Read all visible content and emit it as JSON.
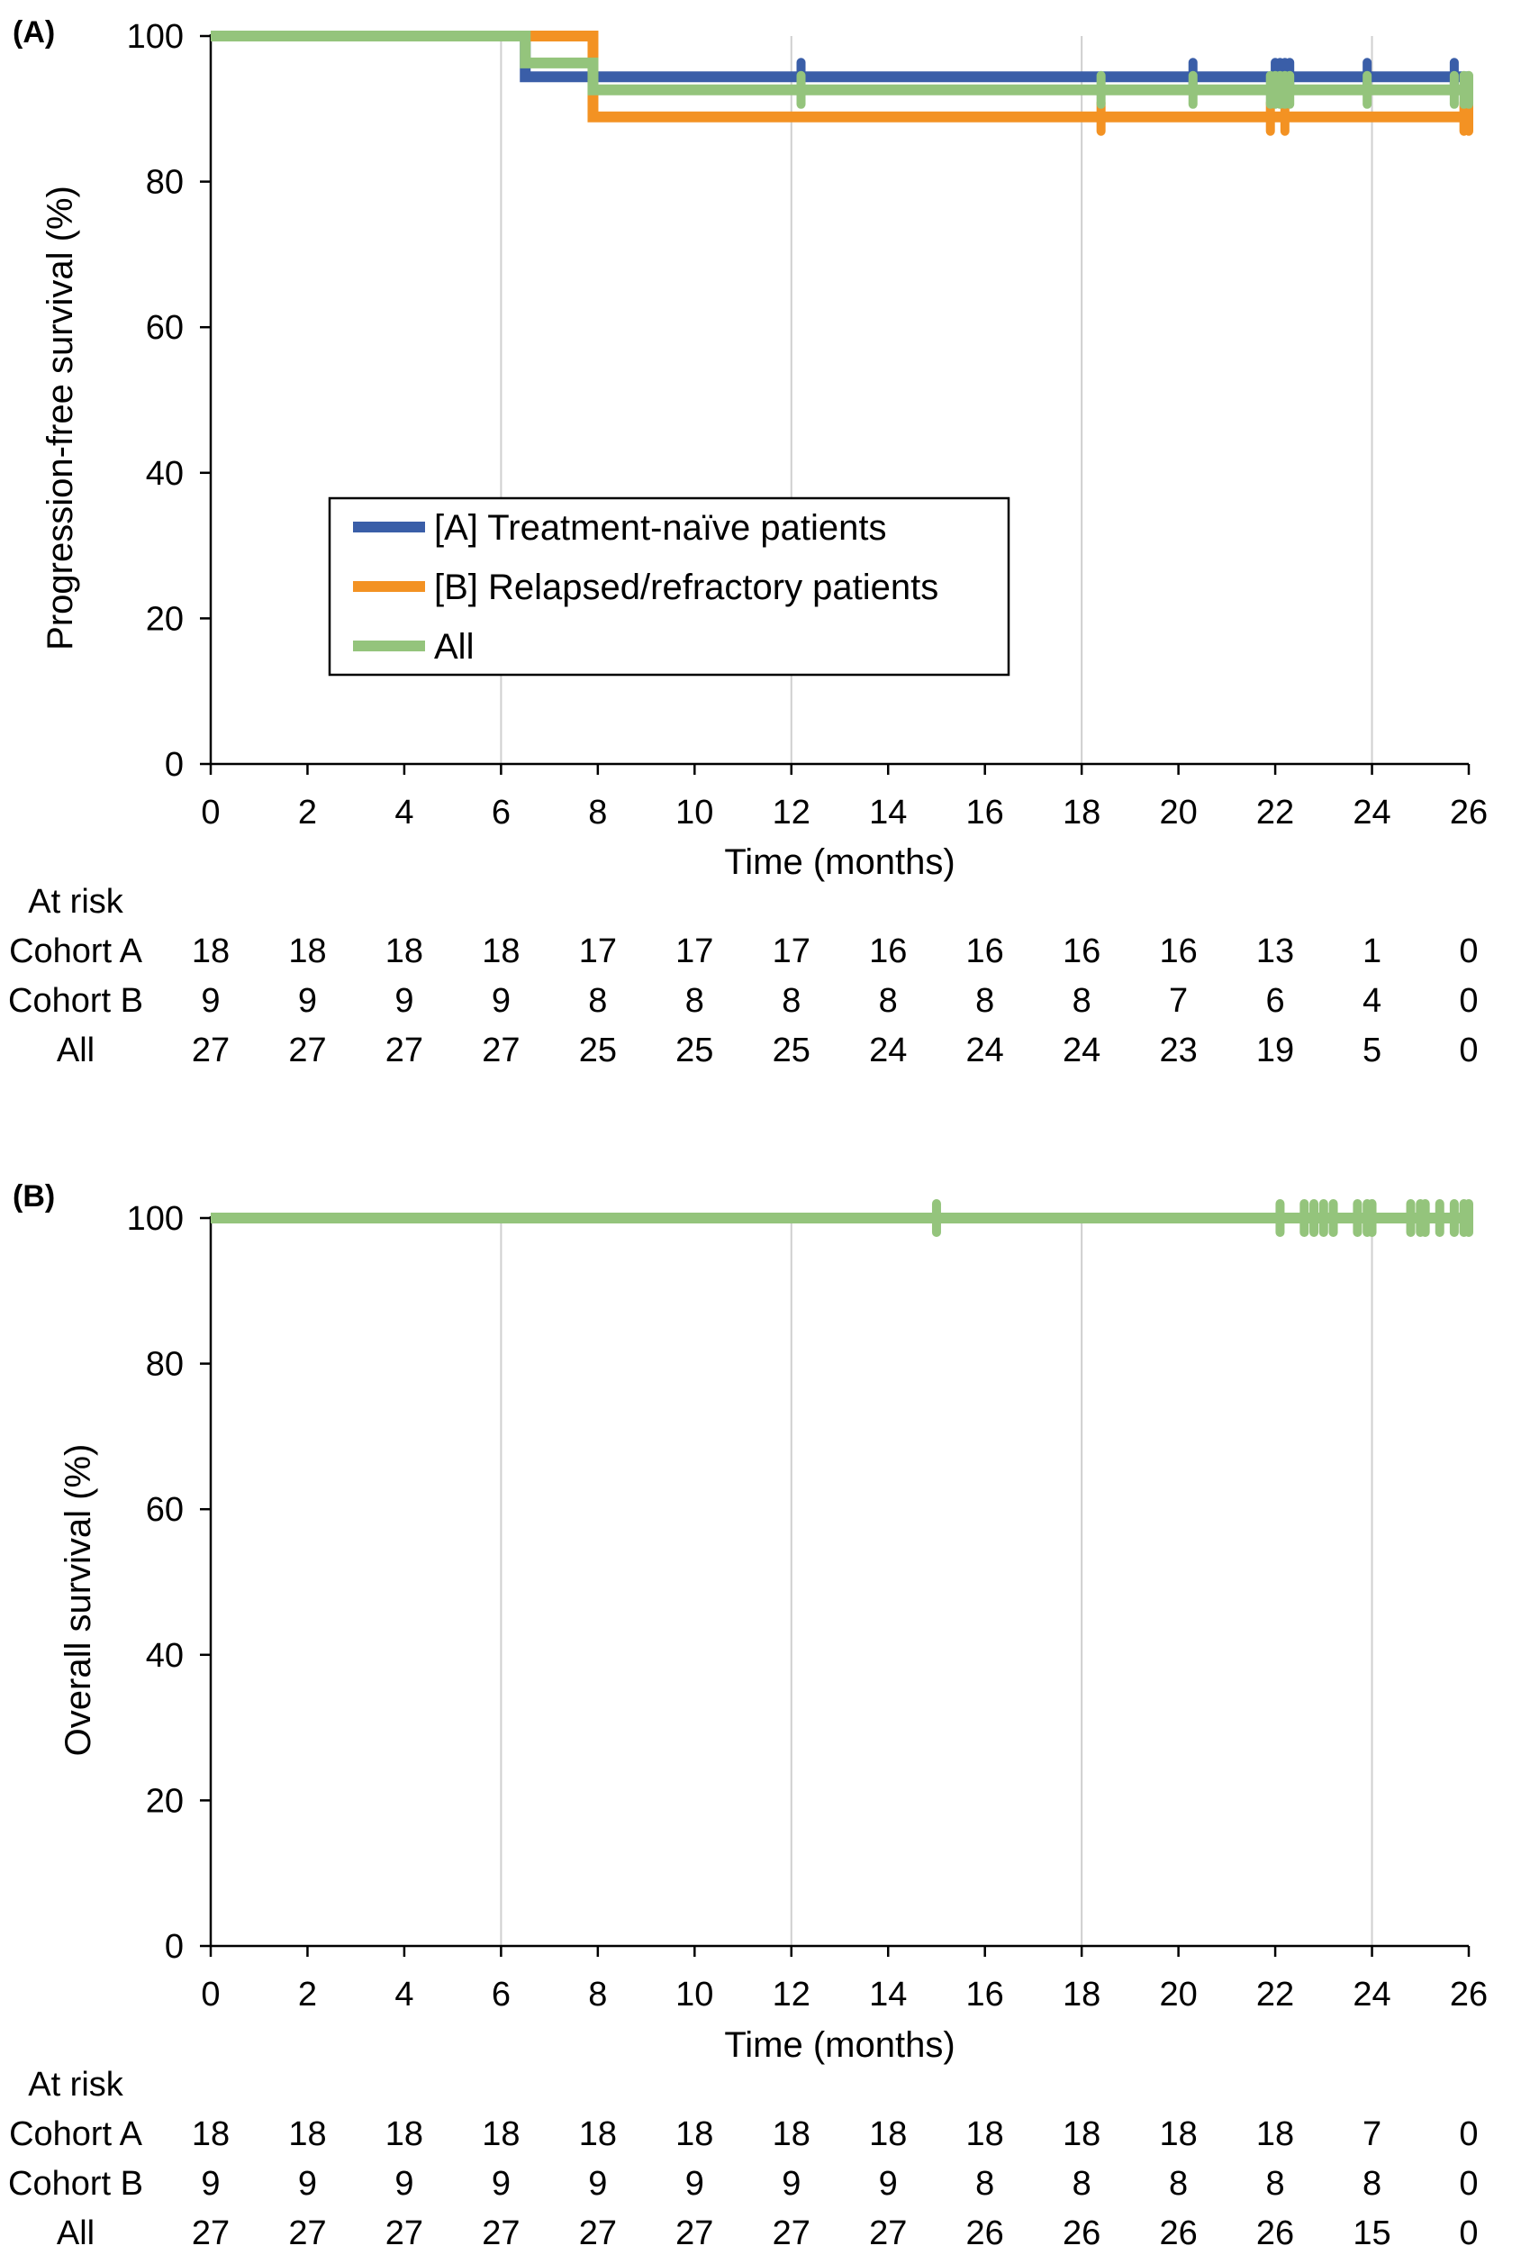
{
  "chart_data": [
    {
      "type": "line",
      "panel_label": "(A)",
      "xlabel": "Time (months)",
      "ylabel": "Progression-free survival (%)",
      "xlim": [
        0,
        26
      ],
      "ylim": [
        0,
        100
      ],
      "x_ticks": [
        0,
        2,
        4,
        6,
        8,
        10,
        12,
        14,
        16,
        18,
        20,
        22,
        24,
        26
      ],
      "y_ticks": [
        0,
        20,
        40,
        60,
        80,
        100
      ],
      "x_grid": [
        6,
        12,
        18,
        24
      ],
      "legend_position": "center-left",
      "series": [
        {
          "name": "[A] Treatment-naïve patients",
          "color": "#3a5ea8",
          "steps": [
            [
              0,
              100
            ],
            [
              6.5,
              94.4
            ],
            [
              26,
              94.4
            ]
          ],
          "censored": [
            [
              12.2,
              94.4
            ],
            [
              20.3,
              94.4
            ],
            [
              22.0,
              94.4
            ],
            [
              22.1,
              94.4
            ],
            [
              22.2,
              94.4
            ],
            [
              22.3,
              94.4
            ],
            [
              23.9,
              94.4
            ],
            [
              25.7,
              94.4
            ]
          ]
        },
        {
          "name": "[B] Relapsed/refractory patients",
          "color": "#f39223",
          "steps": [
            [
              0,
              100
            ],
            [
              7.9,
              88.9
            ],
            [
              26,
              88.9
            ]
          ],
          "censored": [
            [
              18.4,
              88.9
            ],
            [
              21.9,
              88.9
            ],
            [
              22.2,
              88.9
            ],
            [
              25.9,
              88.9
            ],
            [
              26.0,
              88.9
            ]
          ]
        },
        {
          "name": "All",
          "color": "#94c47c",
          "steps": [
            [
              0,
              100
            ],
            [
              6.5,
              96.3
            ],
            [
              7.9,
              92.6
            ],
            [
              26,
              92.6
            ]
          ],
          "censored": [
            [
              12.2,
              92.6
            ],
            [
              18.4,
              92.6
            ],
            [
              20.3,
              92.6
            ],
            [
              21.9,
              92.6
            ],
            [
              22.0,
              92.6
            ],
            [
              22.1,
              92.6
            ],
            [
              22.2,
              92.6
            ],
            [
              22.3,
              92.6
            ],
            [
              23.9,
              92.6
            ],
            [
              25.7,
              92.6
            ],
            [
              25.9,
              92.6
            ],
            [
              26.0,
              92.6
            ]
          ]
        }
      ],
      "at_risk": {
        "heading": "At risk",
        "times": [
          0,
          2,
          4,
          6,
          8,
          10,
          12,
          14,
          16,
          18,
          20,
          22,
          24,
          26
        ],
        "rows": [
          {
            "label": "Cohort A",
            "values": [
              "18",
              "18",
              "18",
              "18",
              "17",
              "17",
              "17",
              "16",
              "16",
              "16",
              "16",
              "13",
              "1",
              "0"
            ]
          },
          {
            "label": "Cohort B",
            "values": [
              "9",
              "9",
              "9",
              "9",
              "8",
              "8",
              "8",
              "8",
              "8",
              "8",
              "7",
              "6",
              "4",
              "0"
            ]
          },
          {
            "label": "All",
            "values": [
              "27",
              "27",
              "27",
              "27",
              "25",
              "25",
              "25",
              "24",
              "24",
              "24",
              "23",
              "19",
              "5",
              "0"
            ]
          }
        ]
      }
    },
    {
      "type": "line",
      "panel_label": "(B)",
      "xlabel": "Time (months)",
      "ylabel": "Overall survival (%)",
      "xlim": [
        0,
        26
      ],
      "ylim": [
        0,
        100
      ],
      "x_ticks": [
        0,
        2,
        4,
        6,
        8,
        10,
        12,
        14,
        16,
        18,
        20,
        22,
        24,
        26
      ],
      "y_ticks": [
        0,
        20,
        40,
        60,
        80,
        100
      ],
      "x_grid": [
        6,
        12,
        18,
        24
      ],
      "series": [
        {
          "color": "#94c47c",
          "steps": [
            [
              0,
              100
            ],
            [
              26,
              100
            ]
          ],
          "censored": [
            [
              15.0,
              100
            ],
            [
              22.1,
              100
            ],
            [
              22.6,
              100
            ],
            [
              22.8,
              100
            ],
            [
              23.0,
              100
            ],
            [
              23.2,
              100
            ],
            [
              23.7,
              100
            ],
            [
              23.9,
              100
            ],
            [
              24.0,
              100
            ],
            [
              24.8,
              100
            ],
            [
              25.0,
              100
            ],
            [
              25.1,
              100
            ],
            [
              25.4,
              100
            ],
            [
              25.7,
              100
            ],
            [
              25.9,
              100
            ],
            [
              26.0,
              100
            ]
          ]
        }
      ],
      "at_risk": {
        "heading": "At risk",
        "times": [
          0,
          2,
          4,
          6,
          8,
          10,
          12,
          14,
          16,
          18,
          20,
          22,
          24,
          26
        ],
        "rows": [
          {
            "label": "Cohort A",
            "values": [
              "18",
              "18",
              "18",
              "18",
              "18",
              "18",
              "18",
              "18",
              "18",
              "18",
              "18",
              "18",
              "7",
              "0"
            ]
          },
          {
            "label": "Cohort B",
            "values": [
              "9",
              "9",
              "9",
              "9",
              "9",
              "9",
              "9",
              "9",
              "8",
              "8",
              "8",
              "8",
              "8",
              "0"
            ]
          },
          {
            "label": "All",
            "values": [
              "27",
              "27",
              "27",
              "27",
              "27",
              "27",
              "27",
              "27",
              "26",
              "26",
              "26",
              "26",
              "15",
              "0"
            ]
          }
        ]
      }
    }
  ]
}
